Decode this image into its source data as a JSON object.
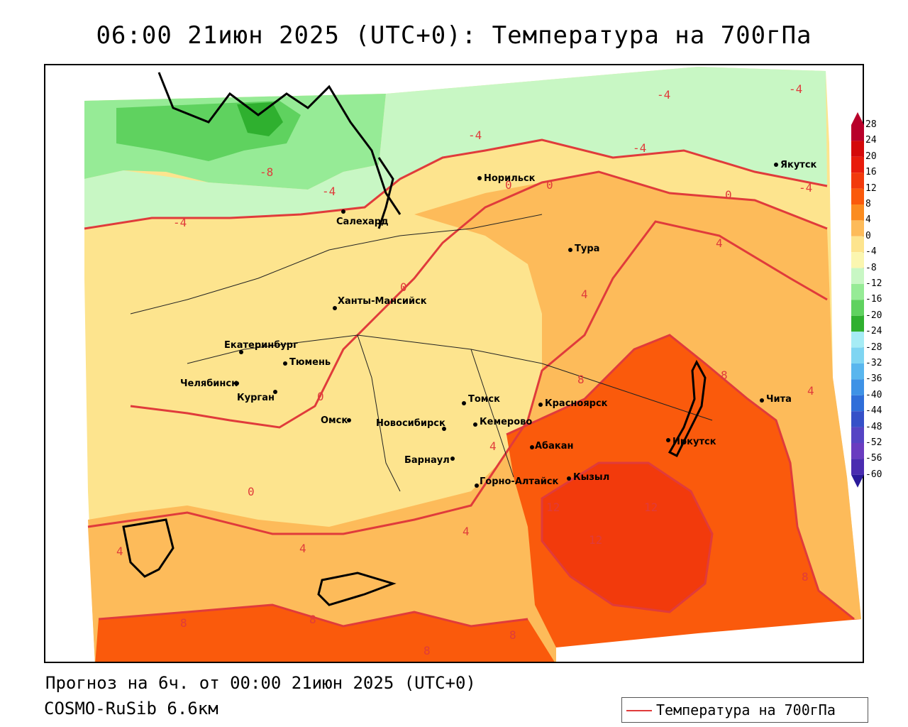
{
  "title": "06:00 21июн 2025 (UTC+0): Температура на 700гПа",
  "footer": {
    "forecast": "Прогноз на 6ч. от 00:00 21июн 2025 (UTC+0)",
    "model": "COSMO-RuSib 6.6км"
  },
  "legend": {
    "label": "Температура на 700гПа",
    "line_color": "#e03b3b"
  },
  "colorbar": {
    "labels": [
      "28",
      "24",
      "20",
      "16",
      "12",
      "8",
      "4",
      "0",
      "-4",
      "-8",
      "-12",
      "-16",
      "-20",
      "-24",
      "-28",
      "-32",
      "-36",
      "-40",
      "-44",
      "-48",
      "-52",
      "-56",
      "-60"
    ],
    "colors": [
      "#b8002a",
      "#d40a0a",
      "#e81c0c",
      "#f23a0c",
      "#fa5a0c",
      "#fb8c20",
      "#fdbb5a",
      "#fde48e",
      "#fbf6b0",
      "#c8f7c4",
      "#96eb96",
      "#5fd25f",
      "#2fb02f",
      "#a6ecf5",
      "#7fd5f2",
      "#59b6ee",
      "#3e92e6",
      "#2f6ed9",
      "#3550c8",
      "#5544c4",
      "#6a3cc0",
      "#4a2cb0",
      "#2a1a9a"
    ]
  },
  "cities": [
    {
      "name": "Норильск"
    },
    {
      "name": "Якутск"
    },
    {
      "name": "Салехард"
    },
    {
      "name": "Тура"
    },
    {
      "name": "Ханты-Мансийск"
    },
    {
      "name": "Екатеринбург"
    },
    {
      "name": "Тюмень"
    },
    {
      "name": "Челябинск"
    },
    {
      "name": "Курган"
    },
    {
      "name": "Омск"
    },
    {
      "name": "Новосибирск"
    },
    {
      "name": "Томск"
    },
    {
      "name": "Кемерово"
    },
    {
      "name": "Красноярск"
    },
    {
      "name": "Барнаул"
    },
    {
      "name": "Абакан"
    },
    {
      "name": "Иркутск"
    },
    {
      "name": "Чита"
    },
    {
      "name": "Горно-Алтайск"
    },
    {
      "name": "Кызыл"
    }
  ],
  "isolines": [
    "-4",
    "-8",
    "-4",
    "-4",
    "-4",
    "-4",
    "-4",
    "0",
    "0",
    "0",
    "0",
    "0",
    "0",
    "4",
    "4",
    "4",
    "4",
    "4",
    "4",
    "4",
    "8",
    "8",
    "8",
    "8",
    "8",
    "8",
    "8",
    "12",
    "12",
    "12",
    "-4"
  ]
}
